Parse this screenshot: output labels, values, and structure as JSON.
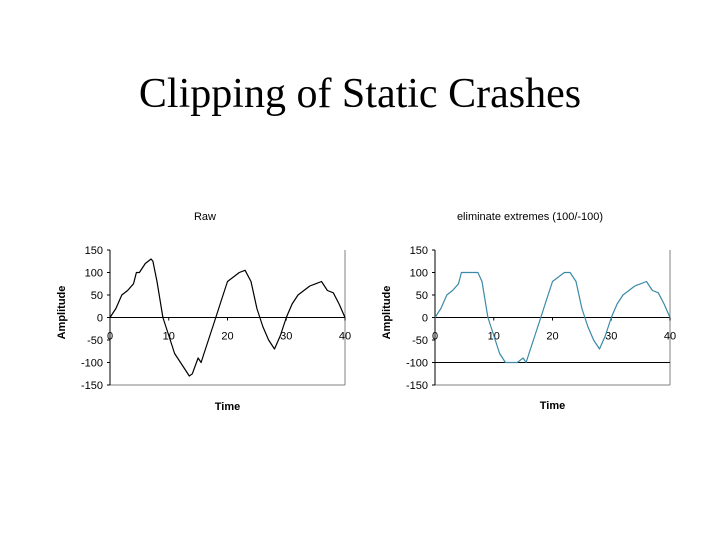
{
  "title": "Clipping of Static Crashes",
  "colors": {
    "raw_line": "#000000",
    "clipped_line": "#3a8aa8",
    "axis": "#000000",
    "frame": "#808080",
    "clip_line": "#000000"
  },
  "chart_data": [
    {
      "type": "line",
      "title": "Raw",
      "xlabel": "Time",
      "ylabel": "Amplitude",
      "xlim": [
        0,
        40
      ],
      "ylim": [
        -150,
        150
      ],
      "xticks": [
        0,
        10,
        20,
        30,
        40
      ],
      "yticks": [
        150,
        100,
        50,
        0,
        -50,
        -100,
        -150
      ],
      "x_tick_labels": [
        "0",
        "10",
        "20",
        "30",
        "40"
      ],
      "y_tick_labels": [
        "150",
        "100",
        "50",
        "0",
        "-50",
        "-100",
        "-150"
      ],
      "grid": false,
      "legend": "none",
      "series": [
        {
          "x": [
            0,
            1,
            2,
            3,
            4,
            4.5,
            5,
            6,
            7,
            7.3,
            8,
            9,
            10,
            11,
            12,
            13,
            13.5,
            14,
            15,
            15.5,
            16,
            17,
            18,
            19,
            20,
            21,
            22,
            23,
            24,
            25,
            26,
            27,
            28,
            29,
            30,
            31,
            32,
            33,
            34,
            35,
            36,
            37,
            38,
            39,
            40
          ],
          "y": [
            0,
            20,
            50,
            60,
            75,
            100,
            100,
            120,
            130,
            125,
            80,
            0,
            -40,
            -80,
            -100,
            -120,
            -130,
            -125,
            -90,
            -100,
            -80,
            -40,
            0,
            40,
            80,
            90,
            100,
            105,
            80,
            20,
            -20,
            -50,
            -70,
            -40,
            0,
            30,
            50,
            60,
            70,
            75,
            80,
            60,
            55,
            30,
            0
          ]
        }
      ]
    },
    {
      "type": "line",
      "title": "eliminate extremes (100/-100)",
      "xlabel": "Time",
      "ylabel": "Amplitude",
      "xlim": [
        0,
        40
      ],
      "ylim": [
        -150,
        150
      ],
      "xticks": [
        0,
        10,
        20,
        30,
        40
      ],
      "yticks": [
        150,
        100,
        50,
        0,
        -50,
        -100,
        -150
      ],
      "x_tick_labels": [
        "0",
        "10",
        "20",
        "30",
        "40"
      ],
      "y_tick_labels": [
        "150",
        "100",
        "50",
        "0",
        "-50",
        "-100",
        "-150"
      ],
      "grid": false,
      "legend": "none",
      "clip_level": -100,
      "series": [
        {
          "x": [
            0,
            1,
            2,
            3,
            4,
            4.5,
            5,
            6,
            7,
            7.3,
            8,
            9,
            10,
            11,
            12,
            13,
            13.5,
            14,
            15,
            15.5,
            16,
            17,
            18,
            19,
            20,
            21,
            22,
            23,
            24,
            25,
            26,
            27,
            28,
            29,
            30,
            31,
            32,
            33,
            34,
            35,
            36,
            37,
            38,
            39,
            40
          ],
          "y": [
            0,
            20,
            50,
            60,
            75,
            100,
            100,
            100,
            100,
            100,
            80,
            0,
            -40,
            -80,
            -100,
            -100,
            -100,
            -100,
            -90,
            -100,
            -80,
            -40,
            0,
            40,
            80,
            90,
            100,
            100,
            80,
            20,
            -20,
            -50,
            -70,
            -40,
            0,
            30,
            50,
            60,
            70,
            75,
            80,
            60,
            55,
            30,
            0
          ]
        }
      ]
    }
  ]
}
